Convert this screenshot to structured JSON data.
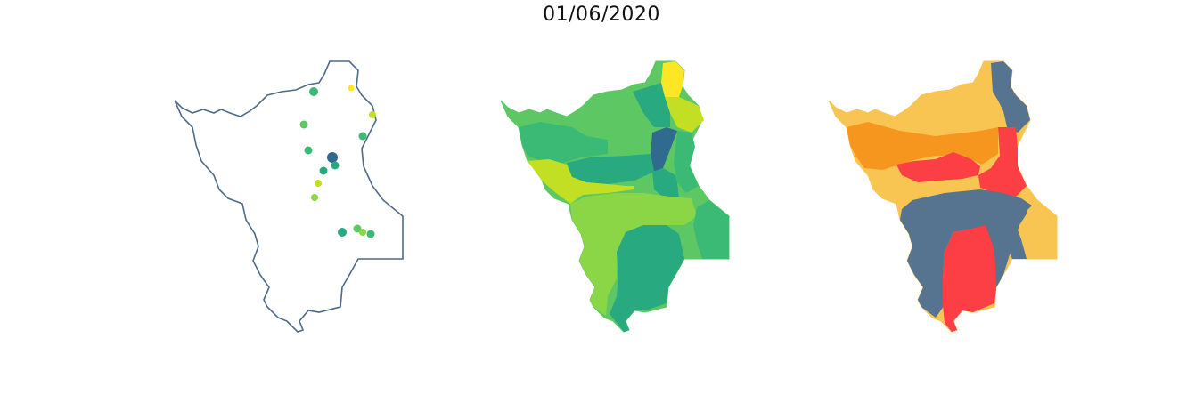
{
  "title": "01/06/2020",
  "colors": {
    "outline": "#4e6a87",
    "viridis": [
      "#306a8e",
      "#2e8f8a",
      "#28a97f",
      "#3aba74",
      "#5dc863",
      "#8ad646",
      "#c2df23",
      "#fde725"
    ],
    "risk": {
      "low": "#56738f",
      "medium": "#f8c553",
      "high": "#f7961f",
      "very_high": "#fb3f44"
    }
  },
  "panels": [
    {
      "id": "stations",
      "kind": "point map"
    },
    {
      "id": "basins-continuous",
      "kind": "choropleth"
    },
    {
      "id": "basins-risk",
      "kind": "categorical choropleth"
    }
  ]
}
